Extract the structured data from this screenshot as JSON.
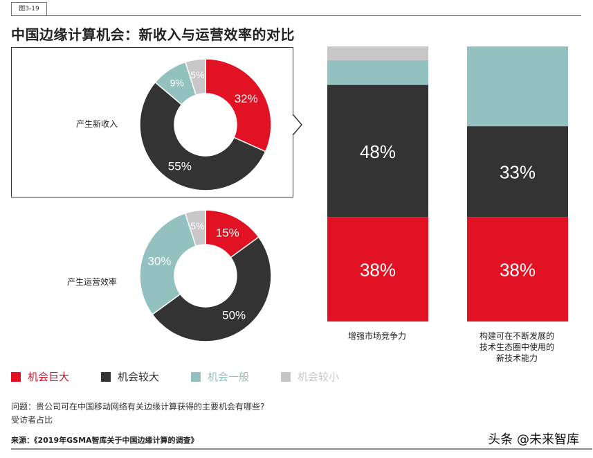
{
  "figure_tag": "图3-19",
  "chart_data": {
    "title": "中国边缘计算机会：新收入与运营效率的对比",
    "legend": {
      "placement": "bottom-left",
      "entries": [
        {
          "label": "机会巨大",
          "color": "#e11224"
        },
        {
          "label": "机会较大",
          "color": "#333333"
        },
        {
          "label": "机会一般",
          "color": "#93c1bf"
        },
        {
          "label": "机会较小",
          "color": "#c7c7c7"
        }
      ]
    },
    "donuts": [
      {
        "type": "pie",
        "label": "产生新收入",
        "values": [
          32,
          55,
          9,
          5
        ],
        "labels": [
          "32%",
          "55%",
          "9%",
          "5%"
        ]
      },
      {
        "type": "pie",
        "label": "产生运营效率",
        "values": [
          15,
          50,
          30,
          5
        ],
        "labels": [
          "15%",
          "50%",
          "30%",
          "5%"
        ]
      }
    ],
    "bars": {
      "type": "bar",
      "stacked": true,
      "categories": [
        "增强市场竞争力",
        "构建可在不断发展的技术生态圈中使用的新技术能力"
      ],
      "category_lines": [
        [
          "增强市场竞争力"
        ],
        [
          "构建可在不断发展的",
          "技术生态圈中使用的",
          "新技术能力"
        ]
      ],
      "series_values": [
        [
          38,
          48,
          9,
          5
        ],
        [
          38,
          33,
          29,
          0
        ]
      ],
      "data_labels": [
        [
          "38%",
          "48%",
          "",
          ""
        ],
        [
          "38%",
          "33%",
          "",
          ""
        ]
      ]
    }
  },
  "question": "问题：贵公司可在中国移动网络有关边缘计算获得的主要机会有哪些?",
  "unit_note": "受访者占比",
  "source": "来源：《2019年GSMA智库关于中国边缘计算的调查》",
  "watermark": "头条 @未来智库"
}
